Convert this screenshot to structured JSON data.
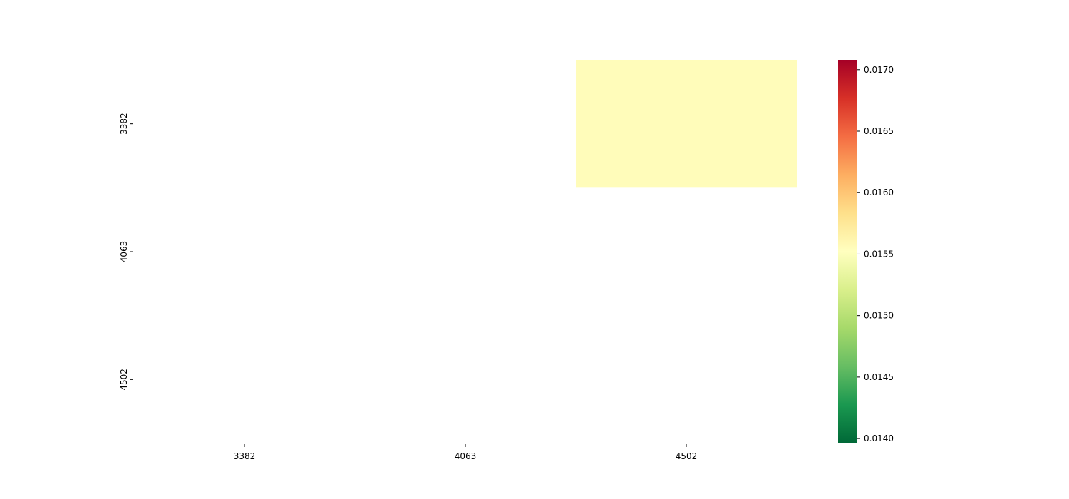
{
  "chart_data": {
    "type": "heatmap",
    "title": "",
    "xlabel": "",
    "ylabel": "",
    "x_categories": [
      "3382",
      "4063",
      "4502"
    ],
    "y_categories": [
      "3382",
      "4063",
      "4502"
    ],
    "values": [
      [
        null,
        null,
        0.01555
      ],
      [
        null,
        null,
        null
      ],
      [
        null,
        null,
        null
      ]
    ],
    "colorscale": "RdYlGn_r",
    "colorbar": {
      "min": 0.01396,
      "max": 0.01708,
      "ticks": [
        "0.0140",
        "0.0145",
        "0.0150",
        "0.0155",
        "0.0160",
        "0.0165",
        "0.0170"
      ],
      "tick_values": [
        0.014,
        0.0145,
        0.015,
        0.0155,
        0.016,
        0.0165,
        0.017
      ],
      "colors": [
        "#006837",
        "#1a9850",
        "#66bd63",
        "#a6d96a",
        "#d9ef8b",
        "#ffffbf",
        "#fee08b",
        "#fdae61",
        "#f46d43",
        "#d73027",
        "#a50026"
      ]
    }
  }
}
